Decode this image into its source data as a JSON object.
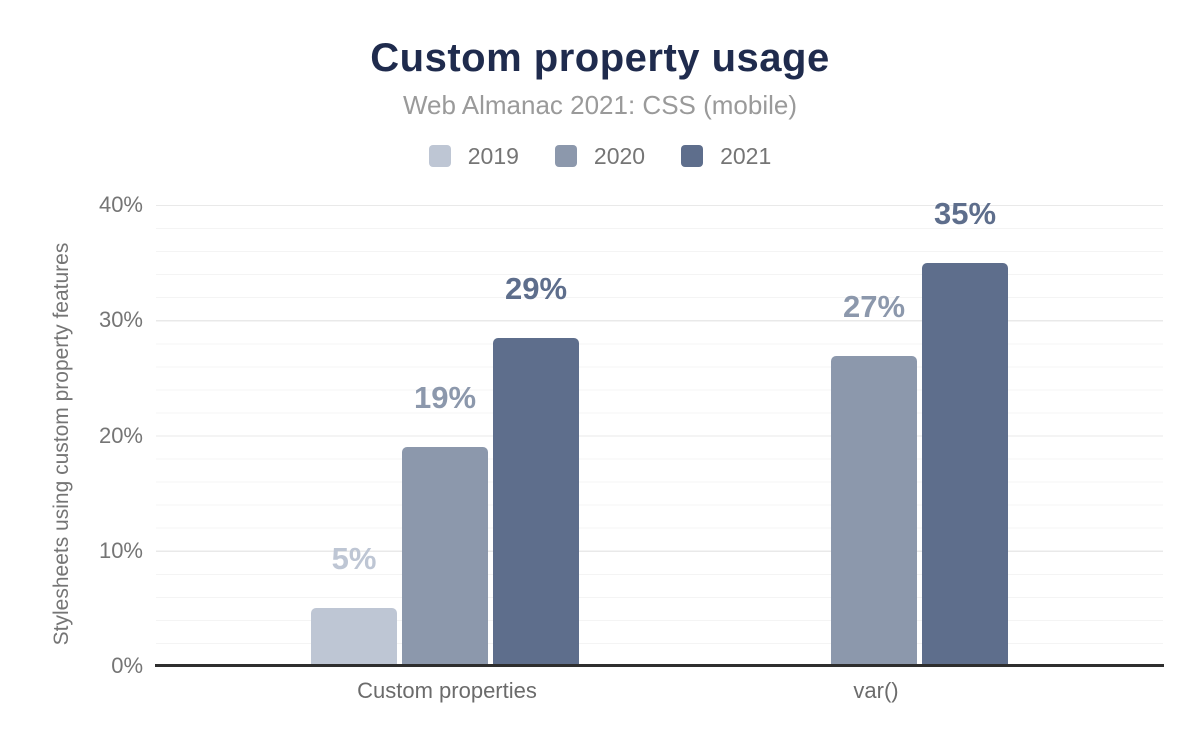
{
  "chart_data": {
    "type": "bar",
    "title": "Custom property usage",
    "subtitle": "Web Almanac 2021: CSS (mobile)",
    "ylabel": "Stylesheets using custom property features",
    "xlabel": "",
    "categories": [
      "Custom properties",
      "var()"
    ],
    "yticks": [
      "0%",
      "10%",
      "20%",
      "30%",
      "40%"
    ],
    "ylim": [
      0,
      40
    ],
    "grid": "horizontal; minor lines every 2%, major lines every 10%",
    "legend_position": "top-center",
    "axis_line_color": "#2e2e2e",
    "title_color": "#1f2b4d",
    "subtitle_color": "#9a9a9a",
    "series": [
      {
        "name": "2019",
        "color": "#bec6d4",
        "values": [
          5,
          null
        ],
        "labels": [
          "5%",
          ""
        ]
      },
      {
        "name": "2020",
        "color": "#8c98ac",
        "values": [
          19,
          26.9
        ],
        "labels": [
          "19%",
          "27%"
        ]
      },
      {
        "name": "2021",
        "color": "#5e6e8c",
        "values": [
          28.5,
          35
        ],
        "labels": [
          "29%",
          "35%"
        ]
      }
    ]
  }
}
